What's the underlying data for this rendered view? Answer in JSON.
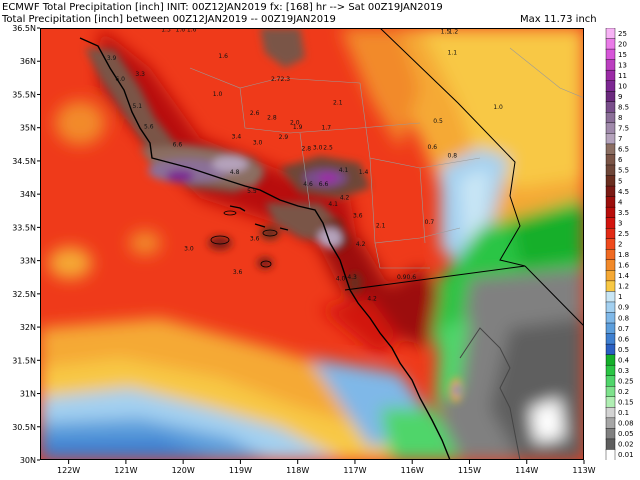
{
  "header": {
    "line1": "ECMWF Total Precipitation [inch] INIT: 00Z12JAN2019 fx: [168] hr --> Sat 00Z19JAN2019",
    "line2": "Total Precipitation [inch] between 00Z12JAN2019 -- 00Z19JAN2019",
    "max": "Max 11.73 inch"
  },
  "map": {
    "lon_labels": [
      "122W",
      "121W",
      "120W",
      "119W",
      "118W",
      "117W",
      "116W",
      "115W",
      "114W",
      "113W"
    ],
    "lat_labels": [
      "36.5N",
      "36N",
      "35.5N",
      "35N",
      "34.5N",
      "34N",
      "33.5N",
      "33N",
      "32.5N",
      "32N",
      "31.5N",
      "31N",
      "30.5N",
      "30N"
    ],
    "value_labels": [
      {
        "t": "1.3",
        "lon": -120.3,
        "lat": 36.45
      },
      {
        "t": "1.6",
        "lon": -120.05,
        "lat": 36.45
      },
      {
        "t": "1.6",
        "lon": -119.85,
        "lat": 36.45
      },
      {
        "t": "3.9",
        "lon": -121.25,
        "lat": 36.02
      },
      {
        "t": "1.6",
        "lon": -119.3,
        "lat": 36.05
      },
      {
        "t": "3.3",
        "lon": -120.75,
        "lat": 35.78
      },
      {
        "t": "6.0",
        "lon": -121.1,
        "lat": 35.7
      },
      {
        "t": "2.72.3",
        "lon": -118.3,
        "lat": 35.7
      },
      {
        "t": "1.0",
        "lon": -119.4,
        "lat": 35.48
      },
      {
        "t": "5.1",
        "lon": -120.8,
        "lat": 35.3
      },
      {
        "t": "2.6",
        "lon": -118.75,
        "lat": 35.19
      },
      {
        "t": "2.8",
        "lon": -118.45,
        "lat": 35.12
      },
      {
        "t": "2.1",
        "lon": -117.3,
        "lat": 35.35
      },
      {
        "t": "2.0",
        "lon": -118.05,
        "lat": 35.05
      },
      {
        "t": "1.9",
        "lon": -118.0,
        "lat": 34.98
      },
      {
        "t": "1.7",
        "lon": -117.5,
        "lat": 34.97
      },
      {
        "t": "5.6",
        "lon": -120.6,
        "lat": 34.99
      },
      {
        "t": "3.4",
        "lon": -119.07,
        "lat": 34.84
      },
      {
        "t": "2.9",
        "lon": -118.25,
        "lat": 34.83
      },
      {
        "t": "3.0",
        "lon": -118.7,
        "lat": 34.75
      },
      {
        "t": "6.6",
        "lon": -120.1,
        "lat": 34.72
      },
      {
        "t": "2.8",
        "lon": -117.85,
        "lat": 34.66
      },
      {
        "t": "3.0",
        "lon": -117.65,
        "lat": 34.67
      },
      {
        "t": "2.5",
        "lon": -117.47,
        "lat": 34.67
      },
      {
        "t": "1.4",
        "lon": -116.85,
        "lat": 34.3
      },
      {
        "t": "4.1",
        "lon": -117.2,
        "lat": 34.33
      },
      {
        "t": "4.8",
        "lon": -119.1,
        "lat": 34.3
      },
      {
        "t": "4.6",
        "lon": -117.82,
        "lat": 34.12
      },
      {
        "t": "6.6",
        "lon": -117.55,
        "lat": 34.12
      },
      {
        "t": "5.5",
        "lon": -118.8,
        "lat": 34.02
      },
      {
        "t": "4.2",
        "lon": -117.18,
        "lat": 33.92
      },
      {
        "t": "3.6",
        "lon": -116.95,
        "lat": 33.65
      },
      {
        "t": "4.1",
        "lon": -117.38,
        "lat": 33.82
      },
      {
        "t": "2.1",
        "lon": -116.55,
        "lat": 33.5
      },
      {
        "t": "4.2",
        "lon": -116.9,
        "lat": 33.22
      },
      {
        "t": "3.0",
        "lon": -119.9,
        "lat": 33.15
      },
      {
        "t": "3.6",
        "lon": -118.75,
        "lat": 33.3
      },
      {
        "t": "3.6",
        "lon": -119.05,
        "lat": 32.8
      },
      {
        "t": "4.0",
        "lon": -117.25,
        "lat": 32.7
      },
      {
        "t": "4.3",
        "lon": -117.05,
        "lat": 32.72
      },
      {
        "t": "4.2",
        "lon": -116.7,
        "lat": 32.4
      },
      {
        "t": "0.90.6",
        "lon": -116.1,
        "lat": 32.72
      },
      {
        "t": "1.5",
        "lon": -115.42,
        "lat": 36.42
      },
      {
        "t": "1.2",
        "lon": -115.28,
        "lat": 36.42
      },
      {
        "t": "1.1",
        "lon": -115.3,
        "lat": 36.1
      },
      {
        "t": "1.0",
        "lon": -114.5,
        "lat": 35.28
      },
      {
        "t": "0.5",
        "lon": -115.55,
        "lat": 35.07
      },
      {
        "t": "0.6",
        "lon": -115.65,
        "lat": 34.68
      },
      {
        "t": "0.8",
        "lon": -115.3,
        "lat": 34.55
      },
      {
        "t": "0.7",
        "lon": -115.7,
        "lat": 33.55
      }
    ]
  },
  "colorbar": {
    "levels": [
      "25",
      "20",
      "15",
      "13",
      "11",
      "10",
      "9",
      "8.5",
      "8",
      "7.5",
      "7",
      "6.5",
      "6",
      "5.5",
      "5",
      "4.5",
      "4",
      "3.5",
      "3",
      "2.5",
      "2",
      "1.8",
      "1.6",
      "1.4",
      "1.2",
      "1",
      "0.9",
      "0.8",
      "0.7",
      "0.6",
      "0.5",
      "0.4",
      "0.3",
      "0.25",
      "0.2",
      "0.15",
      "0.1",
      "0.08",
      "0.05",
      "0.02",
      "0.01"
    ],
    "colors": [
      "#f7b3f5",
      "#ea7be8",
      "#d756d9",
      "#bb3fc0",
      "#9b2ba6",
      "#7c2792",
      "#6b2a7e",
      "#794e8b",
      "#8b6f98",
      "#a08aab",
      "#b5a3bc",
      "#8b6e62",
      "#7a5446",
      "#6e4638",
      "#6a2e1f",
      "#7a1a14",
      "#9c0f0c",
      "#b80d0a",
      "#d2140e",
      "#e22a15",
      "#ef4a1d",
      "#f06a22",
      "#f28a2a",
      "#f5a935",
      "#f8c844",
      "#c9e6f5",
      "#a3d0f0",
      "#7fb8e8",
      "#5c9edc",
      "#3e7fd0",
      "#2a5fc2",
      "#14af2a",
      "#2ac544",
      "#4fd56a",
      "#7ee28c",
      "#b0eeb3",
      "#d3d3d3",
      "#a6a6a6",
      "#808080",
      "#5e5e5e",
      "#ffffff"
    ]
  }
}
